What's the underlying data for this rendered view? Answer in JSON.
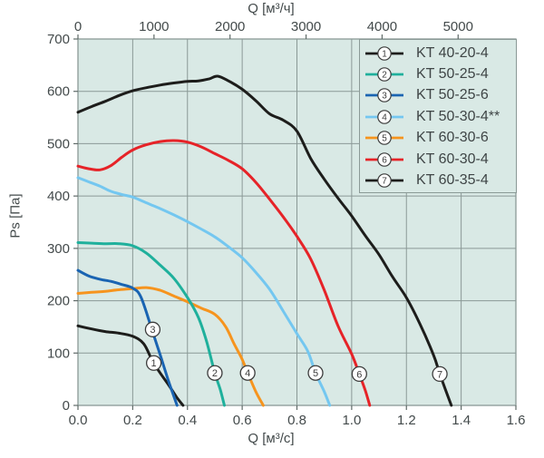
{
  "chart_data": {
    "type": "line",
    "title": "",
    "y_axis": {
      "label": "Ps [Па]",
      "min": 0,
      "max": 700,
      "ticks": [
        "0",
        "100",
        "200",
        "300",
        "400",
        "500",
        "600",
        "700"
      ]
    },
    "x_axis_bottom": {
      "label": "Q [м³/с]",
      "min": 0,
      "max": 1.6,
      "ticks": [
        "0.0",
        "0.2",
        "0.4",
        "0.6",
        "0.8",
        "1.0",
        "1.2",
        "1.4",
        "1.6"
      ]
    },
    "x_axis_top": {
      "label": "Q [м³/ч]",
      "min": 0,
      "max": 5760,
      "ticks": [
        "0",
        "1000",
        "2000",
        "3000",
        "4000",
        "5000"
      ]
    },
    "grid": true,
    "legend_position": "top-right",
    "colors": {
      "plot_bg": "#d9e9e5",
      "grid": "#8a9996",
      "tick": "#5f6a68",
      "text": "#434a4b",
      "marker_stroke": "#3c3c3c",
      "marker_fill": "#ffffff"
    },
    "series": [
      {
        "num": "1",
        "label": "KT 40-20-4",
        "color": "#1d1d1b",
        "points": [
          [
            0,
            152
          ],
          [
            0.05,
            146
          ],
          [
            0.1,
            141
          ],
          [
            0.15,
            138
          ],
          [
            0.2,
            132
          ],
          [
            0.24,
            118
          ],
          [
            0.272,
            85
          ],
          [
            0.3,
            62
          ],
          [
            0.33,
            40
          ],
          [
            0.36,
            16
          ],
          [
            0.384,
            0
          ]
        ]
      },
      {
        "num": "2",
        "label": "KT 50-25-4",
        "color": "#1fb09c",
        "points": [
          [
            0,
            311
          ],
          [
            0.05,
            310
          ],
          [
            0.1,
            309
          ],
          [
            0.15,
            309
          ],
          [
            0.2,
            305
          ],
          [
            0.25,
            291
          ],
          [
            0.3,
            268
          ],
          [
            0.35,
            243
          ],
          [
            0.4,
            206
          ],
          [
            0.44,
            168
          ],
          [
            0.47,
            122
          ],
          [
            0.5,
            62
          ],
          [
            0.52,
            30
          ],
          [
            0.535,
            0
          ]
        ]
      },
      {
        "num": "3",
        "label": "KT 50-25-6",
        "color": "#1a64b2",
        "points": [
          [
            0,
            258
          ],
          [
            0.04,
            247
          ],
          [
            0.08,
            241
          ],
          [
            0.12,
            237
          ],
          [
            0.16,
            231
          ],
          [
            0.2,
            224
          ],
          [
            0.23,
            207
          ],
          [
            0.27,
            145
          ],
          [
            0.3,
            97
          ],
          [
            0.33,
            48
          ],
          [
            0.362,
            0
          ]
        ]
      },
      {
        "num": "4",
        "label": "KT 50-30-4**",
        "color": "#74c7f0",
        "points": [
          [
            0,
            435
          ],
          [
            0.04,
            427
          ],
          [
            0.08,
            419
          ],
          [
            0.12,
            409
          ],
          [
            0.16,
            403
          ],
          [
            0.2,
            398
          ],
          [
            0.25,
            387
          ],
          [
            0.3,
            376
          ],
          [
            0.35,
            364
          ],
          [
            0.4,
            351
          ],
          [
            0.45,
            337
          ],
          [
            0.5,
            322
          ],
          [
            0.55,
            303
          ],
          [
            0.6,
            282
          ],
          [
            0.65,
            254
          ],
          [
            0.7,
            222
          ],
          [
            0.75,
            180
          ],
          [
            0.8,
            137
          ],
          [
            0.84,
            103
          ],
          [
            0.868,
            62
          ],
          [
            0.9,
            26
          ],
          [
            0.92,
            0
          ]
        ]
      },
      {
        "num": "5",
        "label": "KT 60-30-6",
        "color": "#f6941e",
        "points": [
          [
            0,
            214
          ],
          [
            0.05,
            216
          ],
          [
            0.1,
            218
          ],
          [
            0.15,
            221
          ],
          [
            0.2,
            223
          ],
          [
            0.25,
            225
          ],
          [
            0.3,
            220
          ],
          [
            0.35,
            209
          ],
          [
            0.4,
            198
          ],
          [
            0.45,
            186
          ],
          [
            0.5,
            174
          ],
          [
            0.54,
            150
          ],
          [
            0.57,
            118
          ],
          [
            0.6,
            88
          ],
          [
            0.62,
            62
          ],
          [
            0.65,
            26
          ],
          [
            0.677,
            0
          ]
        ]
      },
      {
        "num": "6",
        "label": "KT 60-30-4",
        "color": "#e62328",
        "points": [
          [
            0,
            457
          ],
          [
            0.04,
            452
          ],
          [
            0.08,
            450
          ],
          [
            0.12,
            458
          ],
          [
            0.16,
            474
          ],
          [
            0.2,
            488
          ],
          [
            0.25,
            498
          ],
          [
            0.3,
            504
          ],
          [
            0.35,
            506
          ],
          [
            0.4,
            503
          ],
          [
            0.45,
            494
          ],
          [
            0.5,
            481
          ],
          [
            0.55,
            468
          ],
          [
            0.6,
            452
          ],
          [
            0.65,
            426
          ],
          [
            0.7,
            394
          ],
          [
            0.75,
            360
          ],
          [
            0.8,
            323
          ],
          [
            0.85,
            280
          ],
          [
            0.9,
            220
          ],
          [
            0.95,
            152
          ],
          [
            1.0,
            98
          ],
          [
            1.028,
            60
          ],
          [
            1.05,
            28
          ],
          [
            1.066,
            0
          ]
        ]
      },
      {
        "num": "7",
        "label": "KT 60-35-4",
        "color": "#1d1d1b",
        "points": [
          [
            0,
            560
          ],
          [
            0.05,
            571
          ],
          [
            0.1,
            581
          ],
          [
            0.15,
            592
          ],
          [
            0.2,
            601
          ],
          [
            0.25,
            607
          ],
          [
            0.3,
            612
          ],
          [
            0.35,
            616
          ],
          [
            0.4,
            619
          ],
          [
            0.44,
            620
          ],
          [
            0.48,
            624
          ],
          [
            0.51,
            629
          ],
          [
            0.55,
            620
          ],
          [
            0.6,
            604
          ],
          [
            0.65,
            582
          ],
          [
            0.7,
            557
          ],
          [
            0.75,
            545
          ],
          [
            0.8,
            524
          ],
          [
            0.85,
            472
          ],
          [
            0.9,
            432
          ],
          [
            0.95,
            396
          ],
          [
            1.0,
            362
          ],
          [
            1.05,
            324
          ],
          [
            1.1,
            288
          ],
          [
            1.15,
            245
          ],
          [
            1.2,
            206
          ],
          [
            1.25,
            155
          ],
          [
            1.3,
            95
          ],
          [
            1.322,
            60
          ],
          [
            1.364,
            0
          ]
        ]
      }
    ],
    "curve_labels": [
      {
        "num": "1",
        "at": [
          0.277,
          81
        ]
      },
      {
        "num": "2",
        "at": [
          0.5,
          62
        ]
      },
      {
        "num": "3",
        "at": [
          0.273,
          145
        ]
      },
      {
        "num": "4",
        "at": [
          0.62,
          62
        ]
      },
      {
        "num": "5",
        "at": [
          0.868,
          62
        ]
      },
      {
        "num": "6",
        "at": [
          1.028,
          60
        ]
      },
      {
        "num": "7",
        "at": [
          1.322,
          60
        ]
      }
    ],
    "draw_order": [
      6,
      5,
      3,
      4,
      1,
      0,
      2
    ]
  }
}
